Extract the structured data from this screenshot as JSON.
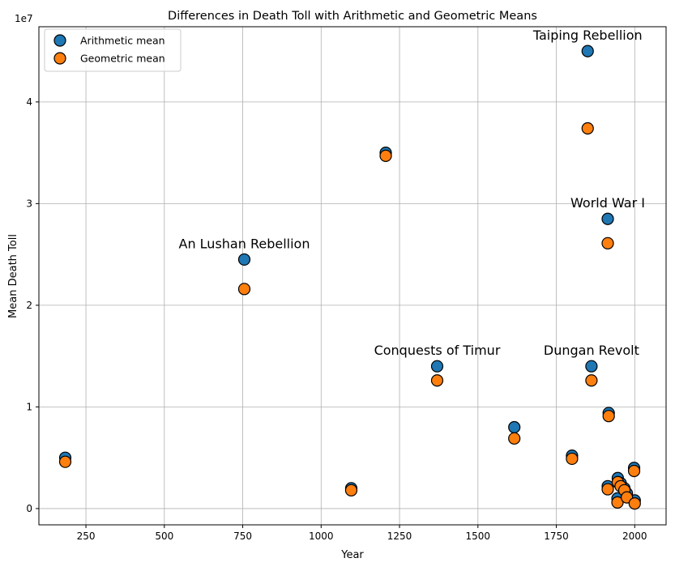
{
  "chart_data": {
    "type": "scatter",
    "title": "Differences in Death Toll with Arithmetic and Geometric Means",
    "xlabel": "Year",
    "ylabel": "Mean Death Toll",
    "y_offset_text": "1e7",
    "xlim": [
      100,
      2100
    ],
    "ylim": [
      -0.16,
      4.74
    ],
    "x_ticks": [
      250,
      500,
      750,
      1000,
      1250,
      1500,
      1750,
      2000
    ],
    "x_tick_labels": [
      "250",
      "500",
      "750",
      "1000",
      "1250",
      "1500",
      "1750",
      "2000"
    ],
    "y_ticks": [
      0,
      1,
      2,
      3,
      4
    ],
    "y_tick_labels": [
      "0",
      "1",
      "2",
      "3",
      "4"
    ],
    "y_scale_note": "y values in units of 1e7",
    "grid": true,
    "legend_position": "upper-left",
    "series": [
      {
        "name": "Arithmetic mean",
        "color": "#1f77b4",
        "points": [
          {
            "x": 184,
            "y": 0.5
          },
          {
            "x": 755,
            "y": 2.45
          },
          {
            "x": 1096,
            "y": 0.2
          },
          {
            "x": 1206,
            "y": 3.5
          },
          {
            "x": 1370,
            "y": 1.4
          },
          {
            "x": 1616,
            "y": 0.8
          },
          {
            "x": 1800,
            "y": 0.52
          },
          {
            "x": 1850,
            "y": 4.5
          },
          {
            "x": 1862,
            "y": 1.4
          },
          {
            "x": 1914,
            "y": 2.85
          },
          {
            "x": 1914,
            "y": 0.22
          },
          {
            "x": 1917,
            "y": 0.94
          },
          {
            "x": 1945,
            "y": 0.1
          },
          {
            "x": 1946,
            "y": 0.3
          },
          {
            "x": 1955,
            "y": 0.25
          },
          {
            "x": 1967,
            "y": 0.2
          },
          {
            "x": 1975,
            "y": 0.15
          },
          {
            "x": 1998,
            "y": 0.4
          },
          {
            "x": 2000,
            "y": 0.08
          }
        ]
      },
      {
        "name": "Geometric mean",
        "color": "#ff7f0e",
        "points": [
          {
            "x": 184,
            "y": 0.46
          },
          {
            "x": 755,
            "y": 2.16
          },
          {
            "x": 1096,
            "y": 0.18
          },
          {
            "x": 1206,
            "y": 3.47
          },
          {
            "x": 1370,
            "y": 1.26
          },
          {
            "x": 1616,
            "y": 0.69
          },
          {
            "x": 1800,
            "y": 0.49
          },
          {
            "x": 1850,
            "y": 3.74
          },
          {
            "x": 1862,
            "y": 1.26
          },
          {
            "x": 1914,
            "y": 2.61
          },
          {
            "x": 1914,
            "y": 0.19
          },
          {
            "x": 1917,
            "y": 0.91
          },
          {
            "x": 1945,
            "y": 0.06
          },
          {
            "x": 1946,
            "y": 0.26
          },
          {
            "x": 1955,
            "y": 0.22
          },
          {
            "x": 1967,
            "y": 0.18
          },
          {
            "x": 1975,
            "y": 0.11
          },
          {
            "x": 1998,
            "y": 0.37
          },
          {
            "x": 2000,
            "y": 0.05
          }
        ]
      }
    ],
    "annotations": [
      {
        "text": "Taiping Rebellion",
        "x": 1850,
        "y": 4.5
      },
      {
        "text": "World War I",
        "x": 1914,
        "y": 2.85
      },
      {
        "text": "An Lushan Rebellion",
        "x": 755,
        "y": 2.45
      },
      {
        "text": "Conquests of Timur",
        "x": 1370,
        "y": 1.4
      },
      {
        "text": "Dungan Revolt",
        "x": 1862,
        "y": 1.4
      }
    ]
  }
}
